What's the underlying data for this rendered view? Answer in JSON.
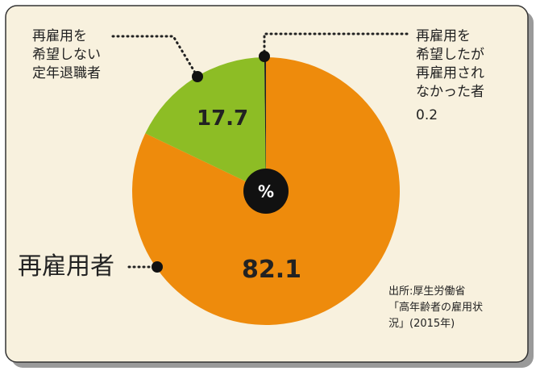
{
  "chart_data": {
    "type": "pie",
    "categories": [
      "再雇用者",
      "再雇用を\n希望しない\n定年退職者",
      "再雇用を\n希望したが\n再雇用され\nなかった者"
    ],
    "values": [
      82.1,
      17.7,
      0.2
    ],
    "colors": [
      "#ee8b0c",
      "#8dbd25",
      "#222222"
    ],
    "center_label": "%",
    "source": "出所:厚生労働省\n「高年齢者の雇用状\n況」(2015年)"
  }
}
